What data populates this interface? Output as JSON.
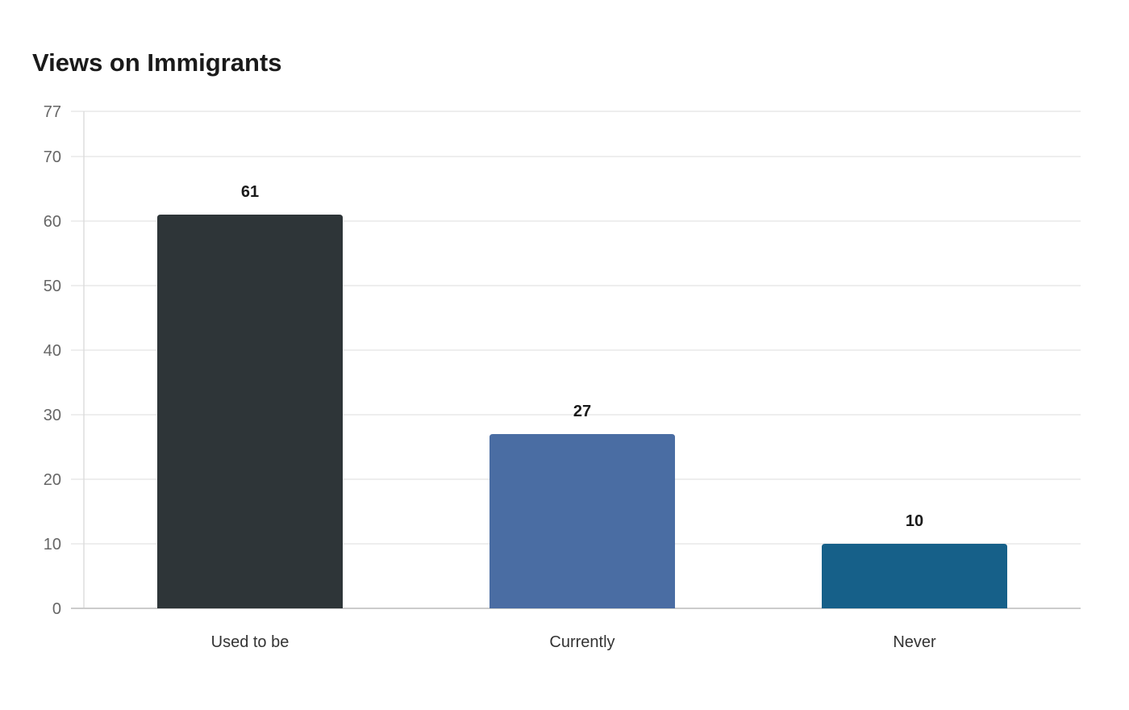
{
  "chart_data": {
    "type": "bar",
    "title": "Views on Immigrants",
    "xlabel": "",
    "ylabel": "",
    "categories": [
      "Used to be",
      "Currently",
      "Never"
    ],
    "values": [
      61,
      27,
      10
    ],
    "colors": [
      "#2e3538",
      "#4a6da3",
      "#166089"
    ],
    "ylim": [
      0,
      77
    ],
    "yticks": [
      0,
      10,
      20,
      30,
      40,
      50,
      60,
      70,
      77
    ],
    "grid": true,
    "legend": "none",
    "data_labels": [
      "61",
      "27",
      "10"
    ]
  }
}
